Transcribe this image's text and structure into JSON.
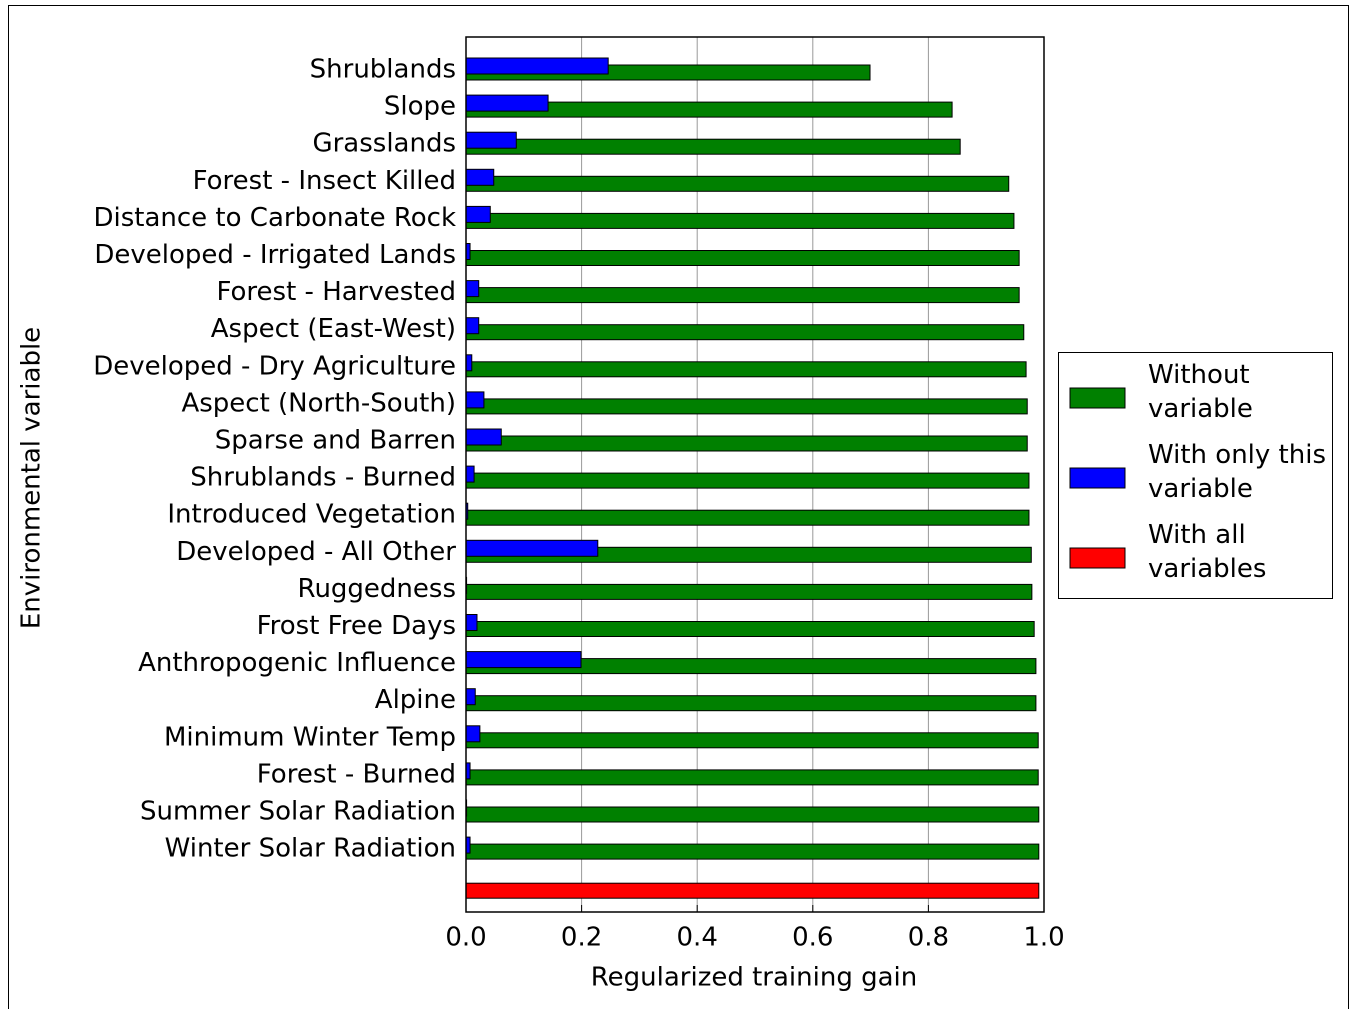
{
  "chart_data": {
    "type": "barh",
    "xlabel": "Regularized training gain",
    "ylabel": "Environmental variable",
    "categories": [
      "Shrublands",
      "Slope",
      "Grasslands",
      "Forest - Insect Killed",
      "Distance to Carbonate Rock",
      "Developed - Irrigated Lands",
      "Forest - Harvested",
      "Aspect (East-West)",
      "Developed - Dry Agriculture",
      "Aspect (North-South)",
      "Sparse and Barren",
      "Shrublands - Burned",
      "Introduced Vegetation",
      "Developed - All Other",
      "Ruggedness",
      "Frost Free Days",
      "Anthropogenic Influence",
      "Alpine",
      "Minimum Winter Temp",
      "Forest - Burned",
      "Summer Solar Radiation",
      "Winter Solar Radiation",
      null
    ],
    "series": [
      {
        "name": "Without variable",
        "color": "#008000",
        "values": [
          0.699,
          0.841,
          0.855,
          0.939,
          0.948,
          0.957,
          0.957,
          0.965,
          0.969,
          0.971,
          0.971,
          0.974,
          0.974,
          0.978,
          0.979,
          0.983,
          0.986,
          0.986,
          0.99,
          0.99,
          0.991,
          0.991,
          null
        ]
      },
      {
        "name": "With only this variable",
        "color": "#0000ff",
        "values": [
          0.246,
          0.142,
          0.087,
          0.048,
          0.042,
          0.007,
          0.022,
          0.022,
          0.01,
          0.031,
          0.061,
          0.014,
          0.003,
          0.228,
          0.001,
          0.019,
          0.199,
          0.016,
          0.024,
          0.007,
          0.001,
          0.007,
          null
        ]
      },
      {
        "name": "With all variables",
        "color": "#ff0000",
        "values": [
          null,
          null,
          null,
          null,
          null,
          null,
          null,
          null,
          null,
          null,
          null,
          null,
          null,
          null,
          null,
          null,
          null,
          null,
          null,
          null,
          null,
          null,
          0.991
        ]
      }
    ],
    "xlim": [
      0,
      1
    ],
    "xticks": [
      {
        "value": 0,
        "label": "0.0"
      },
      {
        "value": 0.2,
        "label": "0.2"
      },
      {
        "value": 0.4,
        "label": "0.4"
      },
      {
        "value": 0.6,
        "label": "0.6"
      },
      {
        "value": 0.8,
        "label": "0.8"
      },
      {
        "value": 1,
        "label": "1.0"
      }
    ],
    "grid": true,
    "legend": "right"
  }
}
